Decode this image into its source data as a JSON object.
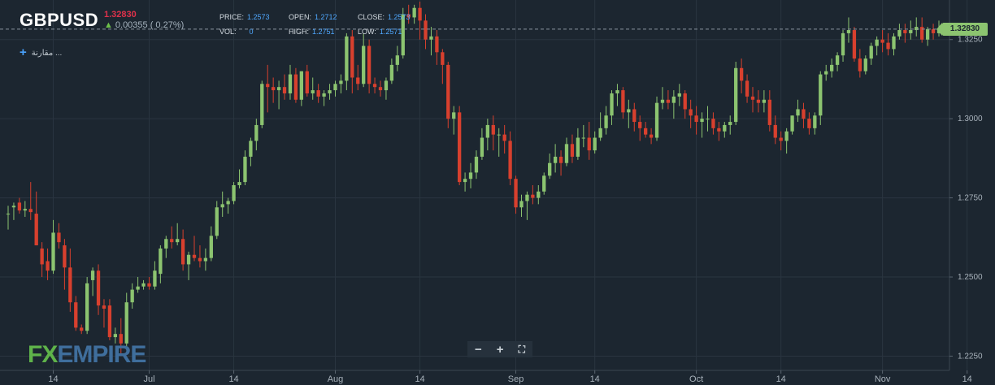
{
  "header": {
    "symbol": "GBPUSD",
    "last_price": "1.32830",
    "change": "0.00355 ( 0.27%)",
    "price_label": "PRICE:",
    "price": "1.2573",
    "vol_label": "VOL:",
    "vol": "0",
    "open_label": "OPEN:",
    "open": "1.2712",
    "high_label": "HIGH:",
    "high": "1.2751",
    "close_label": "CLOSE:",
    "close": "1.2573",
    "low_label": "LOW:",
    "low": "1.2571",
    "compare_label": "مقارنة ..."
  },
  "logo": {
    "fx": "FX",
    "empire": "EMPIRE"
  },
  "zoom": {
    "minus": "−",
    "plus": "+",
    "fullscreen": "⛶"
  },
  "colors": {
    "up": "#8cc470",
    "down": "#d8402e",
    "background": "#1c2630",
    "grid": "#2a3540"
  },
  "chart_data": {
    "type": "candlestick",
    "y_ticks": [
      "1.3250",
      "1.3000",
      "1.2750",
      "1.2500",
      "1.2250"
    ],
    "y_tick_values": [
      1.325,
      1.3,
      1.275,
      1.25,
      1.225
    ],
    "ylim": [
      1.2205,
      1.3375
    ],
    "x_tick_labels": [
      "14",
      "Jul",
      "14",
      "Aug",
      "14",
      "Sep",
      "14",
      "Oct",
      "14",
      "Nov",
      "14"
    ],
    "x_tick_index": [
      8,
      25,
      40,
      58,
      73,
      90,
      104,
      122,
      137,
      155,
      170
    ],
    "current_price": 1.3283,
    "current_price_label": "1.32830",
    "ohlc": [
      [
        1.27,
        1.2725,
        1.265,
        1.27
      ],
      [
        1.272,
        1.2735,
        1.268,
        1.2725
      ],
      [
        1.2735,
        1.275,
        1.27,
        1.271
      ],
      [
        1.271,
        1.274,
        1.269,
        1.2715
      ],
      [
        1.2715,
        1.28,
        1.268,
        1.2705
      ],
      [
        1.27,
        1.277,
        1.26,
        1.26
      ],
      [
        1.259,
        1.261,
        1.25,
        1.254
      ],
      [
        1.255,
        1.259,
        1.249,
        1.252
      ],
      [
        1.252,
        1.268,
        1.251,
        1.264
      ],
      [
        1.264,
        1.267,
        1.259,
        1.261
      ],
      [
        1.26,
        1.262,
        1.246,
        1.253
      ],
      [
        1.253,
        1.259,
        1.239,
        1.242
      ],
      [
        1.242,
        1.244,
        1.233,
        1.234
      ],
      [
        1.234,
        1.235,
        1.232,
        1.233
      ],
      [
        1.233,
        1.25,
        1.232,
        1.248
      ],
      [
        1.249,
        1.253,
        1.244,
        1.252
      ],
      [
        1.252,
        1.254,
        1.238,
        1.241
      ],
      [
        1.241,
        1.243,
        1.234,
        1.24
      ],
      [
        1.241,
        1.243,
        1.23,
        1.231
      ],
      [
        1.231,
        1.234,
        1.229,
        1.232
      ],
      [
        1.232,
        1.237,
        1.225,
        1.229
      ],
      [
        1.229,
        1.245,
        1.227,
        1.242
      ],
      [
        1.242,
        1.248,
        1.24,
        1.246
      ],
      [
        1.246,
        1.25,
        1.245,
        1.247
      ],
      [
        1.247,
        1.249,
        1.246,
        1.248
      ],
      [
        1.248,
        1.25,
        1.246,
        1.247
      ],
      [
        1.247,
        1.255,
        1.246,
        1.252
      ],
      [
        1.251,
        1.26,
        1.248,
        1.259
      ],
      [
        1.259,
        1.263,
        1.256,
        1.262
      ],
      [
        1.262,
        1.266,
        1.259,
        1.261
      ],
      [
        1.261,
        1.267,
        1.26,
        1.262
      ],
      [
        1.262,
        1.265,
        1.252,
        1.254
      ],
      [
        1.254,
        1.258,
        1.249,
        1.257
      ],
      [
        1.257,
        1.263,
        1.255,
        1.256
      ],
      [
        1.256,
        1.26,
        1.253,
        1.255
      ],
      [
        1.255,
        1.259,
        1.252,
        1.256
      ],
      [
        1.256,
        1.266,
        1.255,
        1.263
      ],
      [
        1.263,
        1.274,
        1.262,
        1.272
      ],
      [
        1.272,
        1.277,
        1.269,
        1.273
      ],
      [
        1.273,
        1.275,
        1.27,
        1.274
      ],
      [
        1.274,
        1.28,
        1.273,
        1.279
      ],
      [
        1.279,
        1.284,
        1.278,
        1.28
      ],
      [
        1.28,
        1.29,
        1.279,
        1.288
      ],
      [
        1.288,
        1.294,
        1.285,
        1.293
      ],
      [
        1.293,
        1.3,
        1.29,
        1.298
      ],
      [
        1.298,
        1.312,
        1.297,
        1.311
      ],
      [
        1.311,
        1.317,
        1.302,
        1.31
      ],
      [
        1.31,
        1.313,
        1.305,
        1.309
      ],
      [
        1.309,
        1.312,
        1.303,
        1.31
      ],
      [
        1.31,
        1.314,
        1.306,
        1.308
      ],
      [
        1.308,
        1.317,
        1.306,
        1.314
      ],
      [
        1.314,
        1.316,
        1.305,
        1.306
      ],
      [
        1.306,
        1.315,
        1.304,
        1.315
      ],
      [
        1.315,
        1.317,
        1.307,
        1.308
      ],
      [
        1.308,
        1.313,
        1.306,
        1.309
      ],
      [
        1.309,
        1.311,
        1.305,
        1.307
      ],
      [
        1.307,
        1.309,
        1.304,
        1.308
      ],
      [
        1.308,
        1.311,
        1.306,
        1.309
      ],
      [
        1.309,
        1.312,
        1.307,
        1.311
      ],
      [
        1.311,
        1.314,
        1.308,
        1.312
      ],
      [
        1.312,
        1.327,
        1.309,
        1.326
      ],
      [
        1.326,
        1.328,
        1.308,
        1.313
      ],
      [
        1.313,
        1.317,
        1.309,
        1.311
      ],
      [
        1.311,
        1.327,
        1.31,
        1.323
      ],
      [
        1.323,
        1.325,
        1.308,
        1.311
      ],
      [
        1.311,
        1.313,
        1.308,
        1.31
      ],
      [
        1.31,
        1.312,
        1.307,
        1.309
      ],
      [
        1.309,
        1.313,
        1.306,
        1.312
      ],
      [
        1.312,
        1.319,
        1.311,
        1.317
      ],
      [
        1.317,
        1.323,
        1.315,
        1.32
      ],
      [
        1.32,
        1.335,
        1.319,
        1.333
      ],
      [
        1.333,
        1.336,
        1.33,
        1.332
      ],
      [
        1.332,
        1.336,
        1.33,
        1.335
      ],
      [
        1.335,
        1.337,
        1.325,
        1.331
      ],
      [
        1.331,
        1.333,
        1.322,
        1.325
      ],
      [
        1.325,
        1.329,
        1.32,
        1.326
      ],
      [
        1.326,
        1.328,
        1.317,
        1.321
      ],
      [
        1.321,
        1.322,
        1.311,
        1.317
      ],
      [
        1.317,
        1.318,
        1.297,
        1.3
      ],
      [
        1.3,
        1.304,
        1.295,
        1.302
      ],
      [
        1.302,
        1.304,
        1.279,
        1.28
      ],
      [
        1.28,
        1.283,
        1.277,
        1.281
      ],
      [
        1.281,
        1.286,
        1.278,
        1.283
      ],
      [
        1.283,
        1.29,
        1.281,
        1.288
      ],
      [
        1.288,
        1.297,
        1.287,
        1.294
      ],
      [
        1.294,
        1.3,
        1.29,
        1.298
      ],
      [
        1.298,
        1.301,
        1.29,
        1.295
      ],
      [
        1.295,
        1.297,
        1.288,
        1.295
      ],
      [
        1.295,
        1.298,
        1.289,
        1.293
      ],
      [
        1.293,
        1.296,
        1.279,
        1.281
      ],
      [
        1.281,
        1.282,
        1.27,
        1.272
      ],
      [
        1.272,
        1.276,
        1.269,
        1.274
      ],
      [
        1.274,
        1.277,
        1.268,
        1.276
      ],
      [
        1.276,
        1.279,
        1.273,
        1.275
      ],
      [
        1.275,
        1.279,
        1.273,
        1.277
      ],
      [
        1.277,
        1.283,
        1.276,
        1.282
      ],
      [
        1.282,
        1.289,
        1.281,
        1.286
      ],
      [
        1.286,
        1.292,
        1.283,
        1.288
      ],
      [
        1.288,
        1.29,
        1.282,
        1.286
      ],
      [
        1.286,
        1.294,
        1.285,
        1.292
      ],
      [
        1.292,
        1.295,
        1.286,
        1.288
      ],
      [
        1.288,
        1.297,
        1.287,
        1.294
      ],
      [
        1.294,
        1.298,
        1.291,
        1.294
      ],
      [
        1.294,
        1.299,
        1.287,
        1.29
      ],
      [
        1.29,
        1.296,
        1.289,
        1.294
      ],
      [
        1.294,
        1.302,
        1.293,
        1.297
      ],
      [
        1.297,
        1.304,
        1.295,
        1.301
      ],
      [
        1.301,
        1.309,
        1.298,
        1.308
      ],
      [
        1.308,
        1.311,
        1.304,
        1.309
      ],
      [
        1.309,
        1.31,
        1.3,
        1.302
      ],
      [
        1.302,
        1.306,
        1.297,
        1.303
      ],
      [
        1.303,
        1.305,
        1.296,
        1.299
      ],
      [
        1.299,
        1.301,
        1.293,
        1.297
      ],
      [
        1.297,
        1.299,
        1.294,
        1.295
      ],
      [
        1.295,
        1.297,
        1.292,
        1.294
      ],
      [
        1.294,
        1.307,
        1.293,
        1.305
      ],
      [
        1.305,
        1.31,
        1.303,
        1.306
      ],
      [
        1.306,
        1.309,
        1.303,
        1.305
      ],
      [
        1.305,
        1.309,
        1.3,
        1.307
      ],
      [
        1.307,
        1.311,
        1.304,
        1.308
      ],
      [
        1.308,
        1.309,
        1.3,
        1.303
      ],
      [
        1.303,
        1.306,
        1.297,
        1.301
      ],
      [
        1.301,
        1.304,
        1.295,
        1.299
      ],
      [
        1.299,
        1.302,
        1.294,
        1.3
      ],
      [
        1.3,
        1.304,
        1.296,
        1.3
      ],
      [
        1.3,
        1.302,
        1.295,
        1.297
      ],
      [
        1.297,
        1.299,
        1.293,
        1.296
      ],
      [
        1.296,
        1.299,
        1.294,
        1.298
      ],
      [
        1.298,
        1.301,
        1.295,
        1.299
      ],
      [
        1.299,
        1.318,
        1.298,
        1.316
      ],
      [
        1.316,
        1.319,
        1.308,
        1.312
      ],
      [
        1.312,
        1.314,
        1.305,
        1.307
      ],
      [
        1.307,
        1.31,
        1.302,
        1.306
      ],
      [
        1.306,
        1.309,
        1.302,
        1.305
      ],
      [
        1.305,
        1.309,
        1.302,
        1.306
      ],
      [
        1.306,
        1.309,
        1.296,
        1.298
      ],
      [
        1.298,
        1.301,
        1.292,
        1.294
      ],
      [
        1.294,
        1.296,
        1.29,
        1.293
      ],
      [
        1.293,
        1.297,
        1.289,
        1.296
      ],
      [
        1.296,
        1.301,
        1.295,
        1.301
      ],
      [
        1.301,
        1.306,
        1.299,
        1.303
      ],
      [
        1.303,
        1.305,
        1.297,
        1.3
      ],
      [
        1.3,
        1.302,
        1.295,
        1.297
      ],
      [
        1.297,
        1.302,
        1.295,
        1.301
      ],
      [
        1.301,
        1.315,
        1.298,
        1.314
      ],
      [
        1.314,
        1.317,
        1.312,
        1.315
      ],
      [
        1.315,
        1.319,
        1.313,
        1.317
      ],
      [
        1.317,
        1.321,
        1.315,
        1.32
      ],
      [
        1.32,
        1.328,
        1.318,
        1.327
      ],
      [
        1.327,
        1.332,
        1.324,
        1.328
      ],
      [
        1.328,
        1.329,
        1.318,
        1.319
      ],
      [
        1.319,
        1.322,
        1.313,
        1.315
      ],
      [
        1.315,
        1.32,
        1.314,
        1.319
      ],
      [
        1.319,
        1.324,
        1.317,
        1.323
      ],
      [
        1.323,
        1.326,
        1.32,
        1.325
      ],
      [
        1.325,
        1.328,
        1.321,
        1.324
      ],
      [
        1.324,
        1.327,
        1.32,
        1.322
      ],
      [
        1.322,
        1.327,
        1.32,
        1.326
      ],
      [
        1.326,
        1.33,
        1.325,
        1.328
      ],
      [
        1.328,
        1.33,
        1.324,
        1.327
      ],
      [
        1.327,
        1.331,
        1.325,
        1.328
      ],
      [
        1.328,
        1.332,
        1.326,
        1.329
      ],
      [
        1.329,
        1.332,
        1.324,
        1.325
      ],
      [
        1.325,
        1.329,
        1.323,
        1.3283
      ],
      [
        1.3283,
        1.33,
        1.325,
        1.327
      ],
      [
        1.327,
        1.331,
        1.326,
        1.3283
      ]
    ]
  }
}
